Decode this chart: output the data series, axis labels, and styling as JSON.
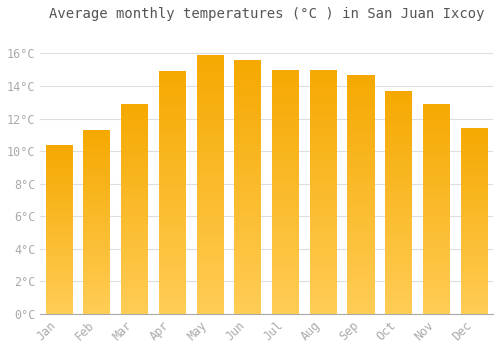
{
  "title": "Average monthly temperatures (°C ) in San Juan Ixcoy",
  "months": [
    "Jan",
    "Feb",
    "Mar",
    "Apr",
    "May",
    "Jun",
    "Jul",
    "Aug",
    "Sep",
    "Oct",
    "Nov",
    "Dec"
  ],
  "values": [
    10.4,
    11.3,
    12.9,
    14.9,
    15.9,
    15.6,
    15.0,
    15.0,
    14.7,
    13.7,
    12.9,
    11.4
  ],
  "bar_color_top": "#F5A800",
  "bar_color_bottom": "#FFCC55",
  "background_color": "#FFFFFF",
  "grid_color": "#DDDDDD",
  "ylim": [
    0,
    17.5
  ],
  "yticks": [
    0,
    2,
    4,
    6,
    8,
    10,
    12,
    14,
    16
  ],
  "title_fontsize": 10,
  "tick_fontsize": 8.5,
  "tick_label_color": "#AAAAAA",
  "title_color": "#555555"
}
